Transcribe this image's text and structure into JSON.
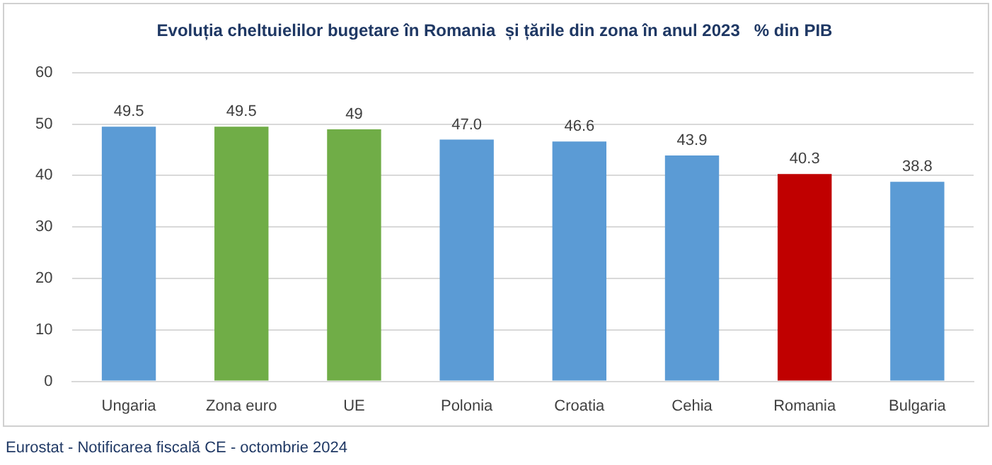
{
  "chart_data": {
    "type": "bar",
    "title": "Evoluția cheltuielilor bugetare în Romania  și țările din zona în anul 2023   % din PIB",
    "categories": [
      "Ungaria",
      "Zona euro",
      "UE",
      "Polonia",
      "Croatia",
      "Cehia",
      "Romania",
      "Bulgaria"
    ],
    "values": [
      49.5,
      49.5,
      49,
      47.0,
      46.6,
      43.9,
      40.3,
      38.8
    ],
    "colors": [
      "#5b9bd5",
      "#70ad47",
      "#70ad47",
      "#5b9bd5",
      "#5b9bd5",
      "#5b9bd5",
      "#c00000",
      "#5b9bd5"
    ],
    "value_labels": [
      "49.5",
      "49.5",
      "49",
      "47.0",
      "46.6",
      "43.9",
      "40.3",
      "38.8"
    ],
    "ylim": [
      0,
      60
    ],
    "yticks": [
      0,
      10,
      20,
      30,
      40,
      50,
      60
    ],
    "grid": "y",
    "legend": false,
    "annotations": [
      "Eurostat - Notificarea fiscală  CE - octombrie  2024"
    ]
  }
}
